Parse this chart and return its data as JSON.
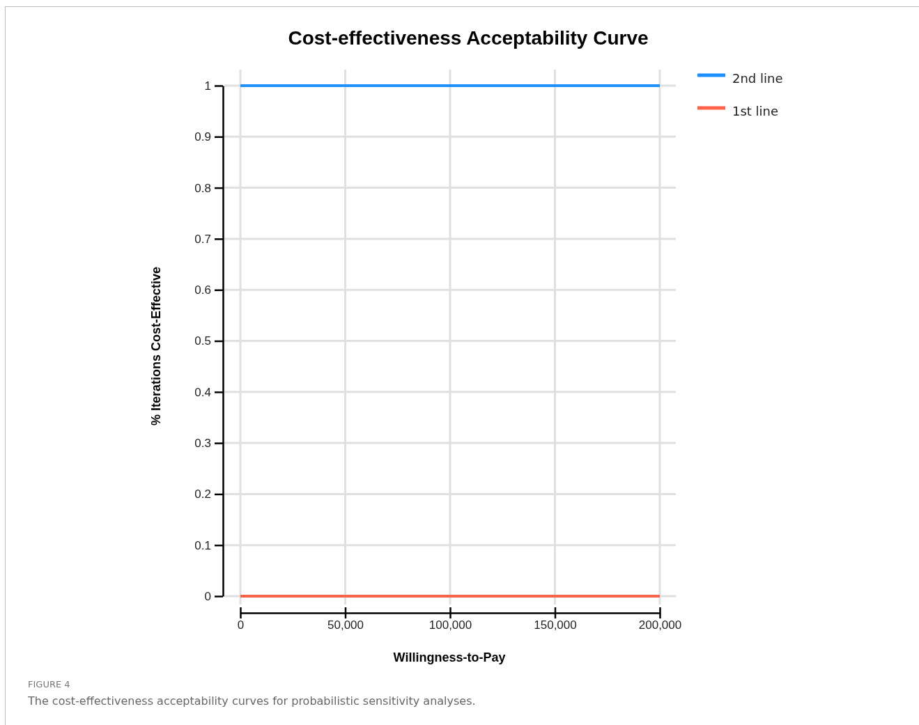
{
  "chart_data": {
    "type": "line",
    "title": "Cost-effectiveness Acceptability Curve",
    "xlabel": "Willingness-to-Pay",
    "ylabel": "% Iterations Cost-Effective",
    "annotations": [
      "FIGURE 4",
      "The cost-effectiveness acceptability curves for probabilistic sensitivity analyses."
    ],
    "x": [
      0,
      200000
    ],
    "series": [
      {
        "name": "2nd line",
        "color": "#1e90ff",
        "values": [
          1,
          1
        ]
      },
      {
        "name": "1st line",
        "color": "#ff6347",
        "values": [
          0,
          0
        ]
      }
    ],
    "xlim": [
      0,
      200000
    ],
    "xticks": [
      {
        "value": 0,
        "label": "0"
      },
      {
        "value": 50000,
        "label": "50,000"
      },
      {
        "value": 100000,
        "label": "100,000"
      },
      {
        "value": 150000,
        "label": "150,000"
      },
      {
        "value": 200000,
        "label": "200,000"
      }
    ],
    "ylim": [
      0,
      1
    ],
    "yticks": [
      0,
      0.1,
      0.2,
      0.3,
      0.4,
      0.5,
      0.6,
      0.7,
      0.8,
      0.9,
      1
    ],
    "grid": true,
    "legend": "top right",
    "marker": "none",
    "line_style": "solid"
  }
}
